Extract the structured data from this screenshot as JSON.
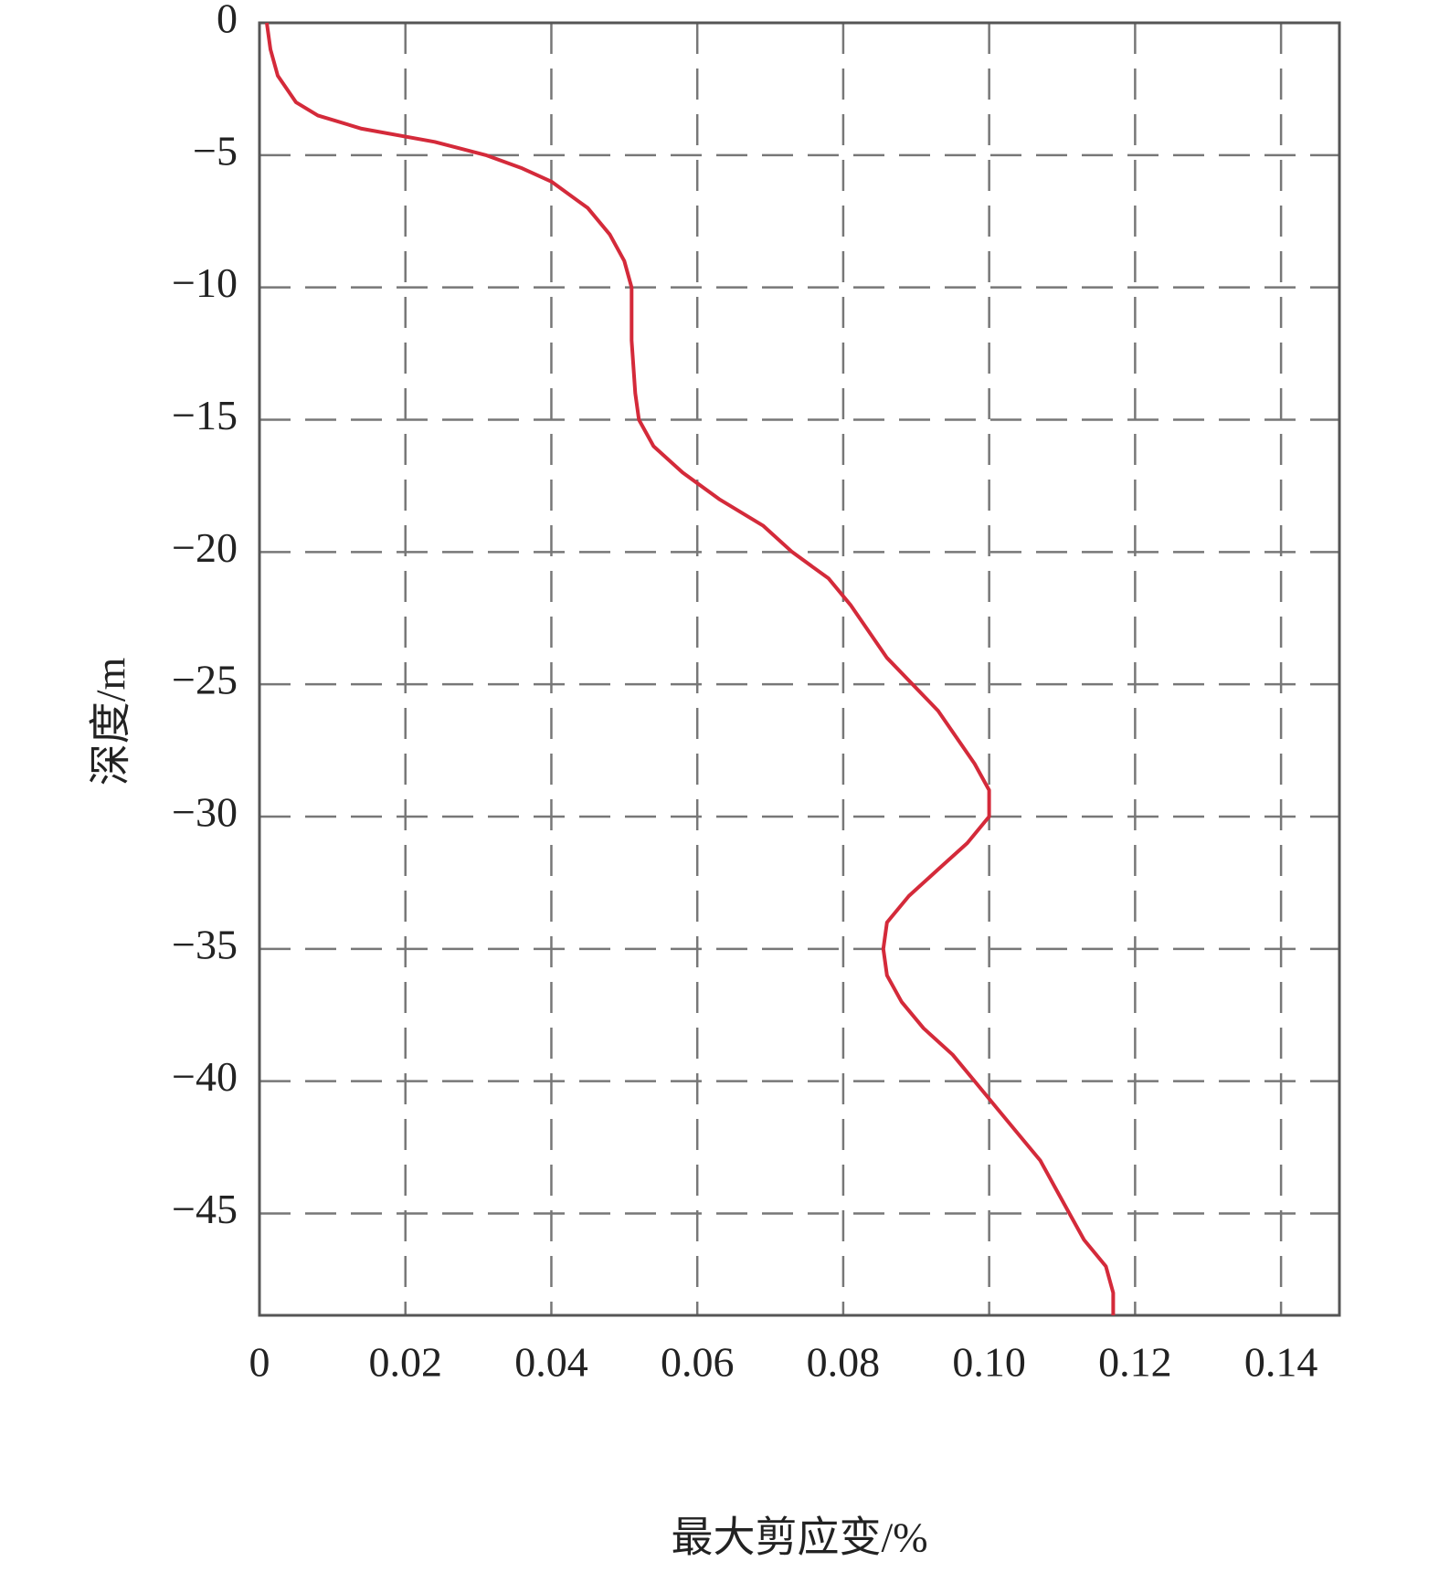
{
  "chart_data": {
    "type": "line",
    "x_label": "最大剪应变/%",
    "y_label": "深度/m",
    "color": "#d42a3a",
    "grid": true,
    "x": [
      0.001,
      0.0015,
      0.0025,
      0.005,
      0.008,
      0.014,
      0.024,
      0.031,
      0.036,
      0.04,
      0.045,
      0.048,
      0.05,
      0.051,
      0.051,
      0.0515,
      0.052,
      0.054,
      0.058,
      0.063,
      0.069,
      0.073,
      0.078,
      0.081,
      0.086,
      0.093,
      0.098,
      0.1,
      0.1,
      0.097,
      0.093,
      0.089,
      0.086,
      0.0855,
      0.086,
      0.088,
      0.091,
      0.095,
      0.098,
      0.101,
      0.104,
      0.107,
      0.109,
      0.111,
      0.113,
      0.116,
      0.117,
      0.117
    ],
    "values": [
      0,
      -1,
      -2,
      -3,
      -3.5,
      -4,
      -4.5,
      -5,
      -5.5,
      -6,
      -7,
      -8,
      -9,
      -10,
      -12,
      -14,
      -15,
      -16,
      -17,
      -18,
      -19,
      -20,
      -21,
      -22,
      -24,
      -26,
      -28,
      -29,
      -30,
      -31,
      -32,
      -33,
      -34,
      -35,
      -36,
      -37,
      -38,
      -39,
      -40,
      -41,
      -42,
      -43,
      -44,
      -45,
      -46,
      -47,
      -48,
      -48.85
    ],
    "xlim": [
      0,
      0.148
    ],
    "xticks": [
      0,
      0.02,
      0.04,
      0.06,
      0.08,
      {
        "value": 0.1,
        "label": "0.10"
      },
      0.12,
      0.14
    ],
    "ylim": [
      -48.85,
      0
    ],
    "yticks": [
      0,
      {
        "value": -5,
        "label": "−5"
      },
      {
        "value": -10,
        "label": "−10"
      },
      {
        "value": -15,
        "label": "−15"
      },
      {
        "value": -20,
        "label": "−20"
      },
      {
        "value": -25,
        "label": "−25"
      },
      {
        "value": -30,
        "label": "−30"
      },
      {
        "value": -35,
        "label": "−35"
      },
      {
        "value": -40,
        "label": "−40"
      },
      {
        "value": -45,
        "label": "−45"
      }
    ]
  }
}
